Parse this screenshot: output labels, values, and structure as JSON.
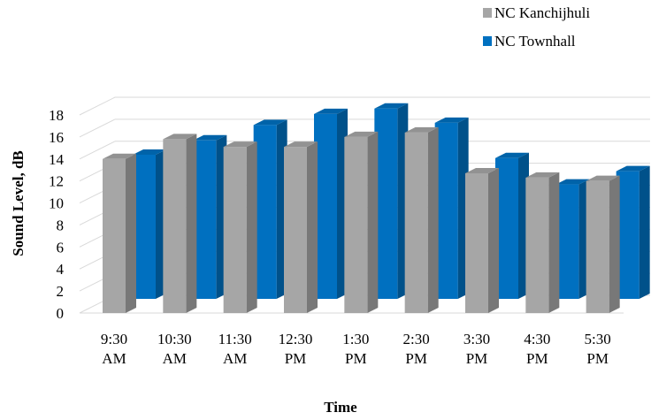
{
  "chart_data": {
    "type": "bar",
    "categories": [
      [
        "9:30",
        "AM"
      ],
      [
        "10:30",
        "AM"
      ],
      [
        "11:30",
        "AM"
      ],
      [
        "12:30",
        "PM"
      ],
      [
        "1:30",
        "PM"
      ],
      [
        "2:30",
        "PM"
      ],
      [
        "3:30",
        "PM"
      ],
      [
        "4:30",
        "PM"
      ],
      [
        "5:30",
        "PM"
      ]
    ],
    "series": [
      {
        "name": "NC Kanchijhuli",
        "color": "#a6a6a6",
        "values": [
          14.0,
          15.8,
          15.1,
          15.1,
          16.0,
          16.4,
          12.7,
          12.3,
          12.0
        ]
      },
      {
        "name": "NC Townhall",
        "color": "#0070c0",
        "values": [
          13.1,
          14.4,
          15.8,
          16.8,
          17.3,
          16.0,
          12.8,
          10.4,
          11.6
        ]
      }
    ],
    "xlabel": "Time",
    "ylabel": "Sound Level, dB",
    "yticks": [
      "0",
      "2",
      "4",
      "6",
      "8",
      "10",
      "12",
      "14",
      "16",
      "18"
    ],
    "ylim": [
      0,
      18
    ],
    "grid": true,
    "legend_position": "top-right",
    "style": "3d-clustered-column"
  }
}
